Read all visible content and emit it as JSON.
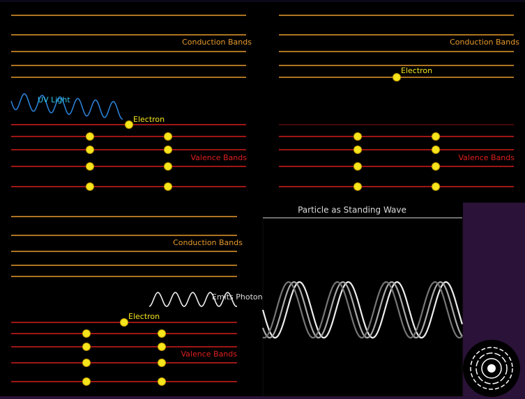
{
  "panels": [
    {
      "conduction_label": "Conduction Bands",
      "light_label": "UV Light",
      "electron_label": "Electron",
      "valence_label": "Valence Bands"
    },
    {
      "conduction_label": "Conduction Bands",
      "electron_label": "Electron",
      "valence_label": "Valence Bands"
    },
    {
      "conduction_label": "Conduction Bands",
      "photon_label": "Emits Photon",
      "electron_label": "Electron",
      "valence_label": "Valence Bands"
    }
  ],
  "wave_panel": {
    "title": "Particle as Standing Wave"
  }
}
